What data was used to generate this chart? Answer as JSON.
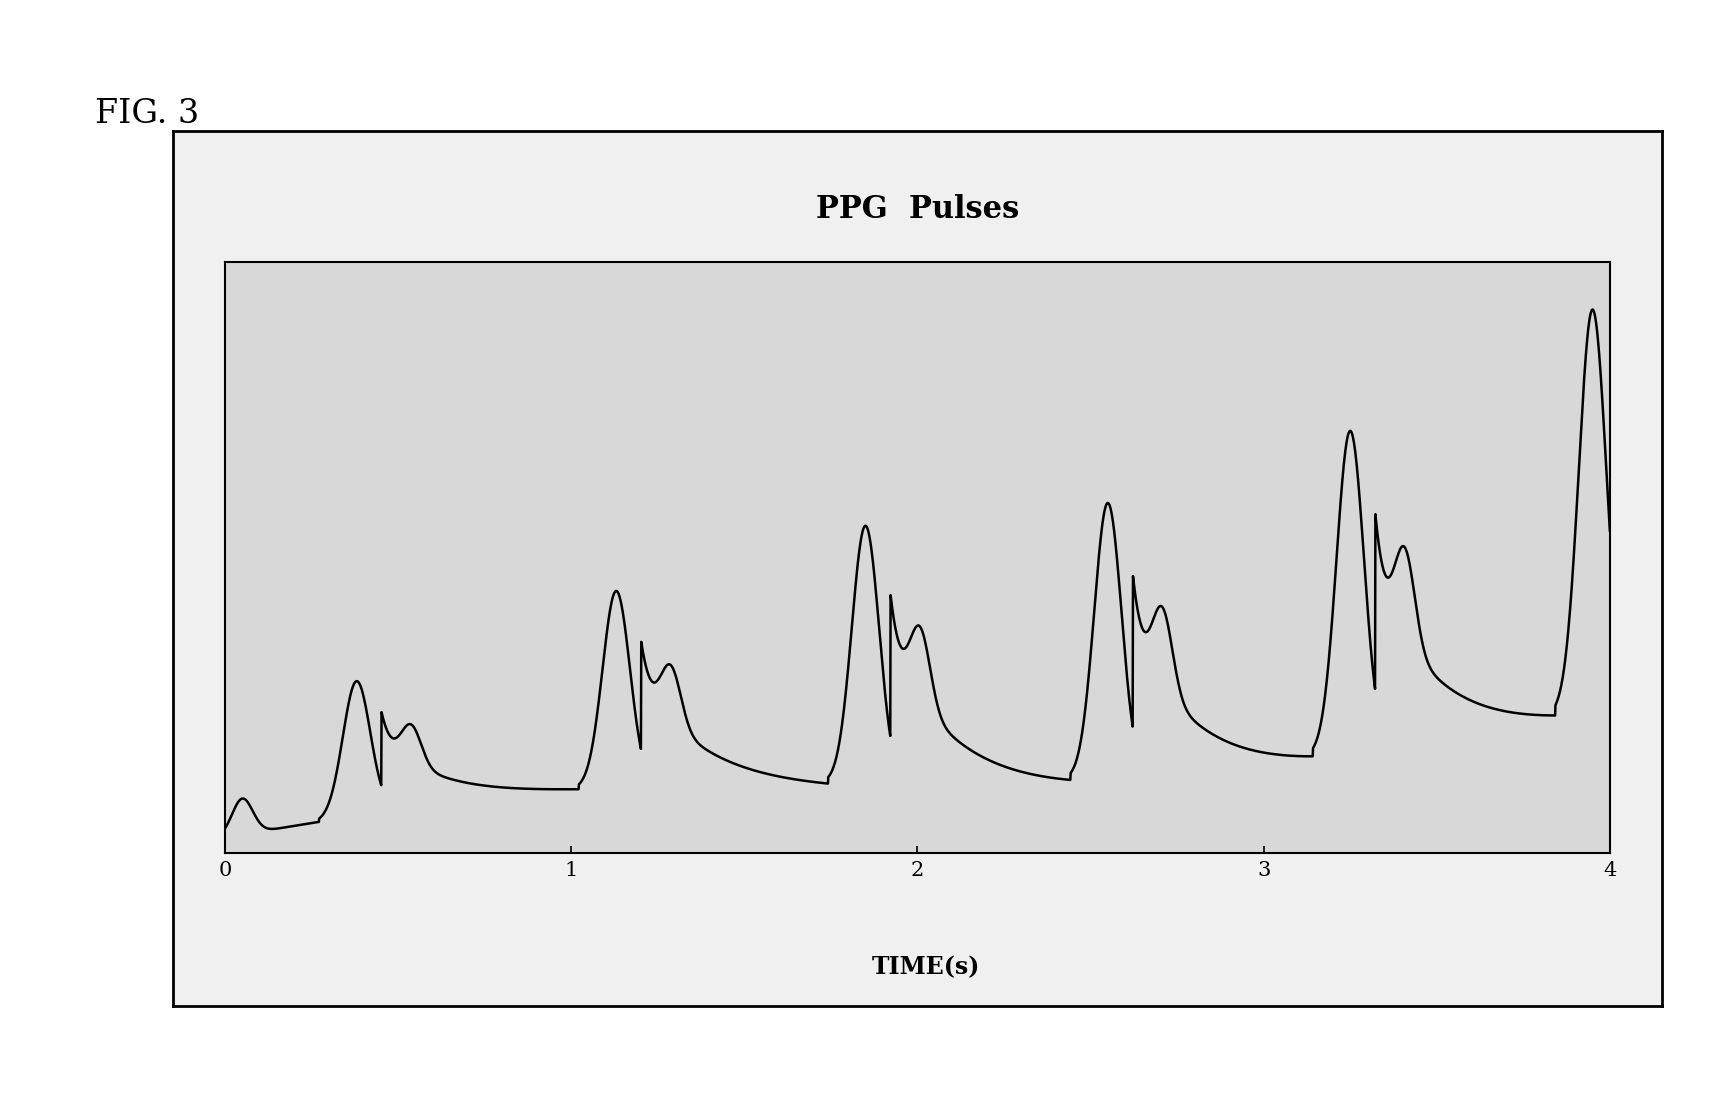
{
  "title": "PPG  Pulses",
  "xlabel": "TIME(s)",
  "xlim": [
    0,
    4
  ],
  "xticks": [
    0,
    1,
    2,
    3,
    4
  ],
  "inner_bg": "#e8e8e8",
  "outer_bg": "#ffffff",
  "plot_bg": "#e0e0e0",
  "line_color": "#000000",
  "line_width": 1.8,
  "fig_label": "FIG. 3",
  "title_fontsize": 22,
  "xlabel_fontsize": 17,
  "tick_fontsize": 15,
  "fig_label_fontsize": 24
}
